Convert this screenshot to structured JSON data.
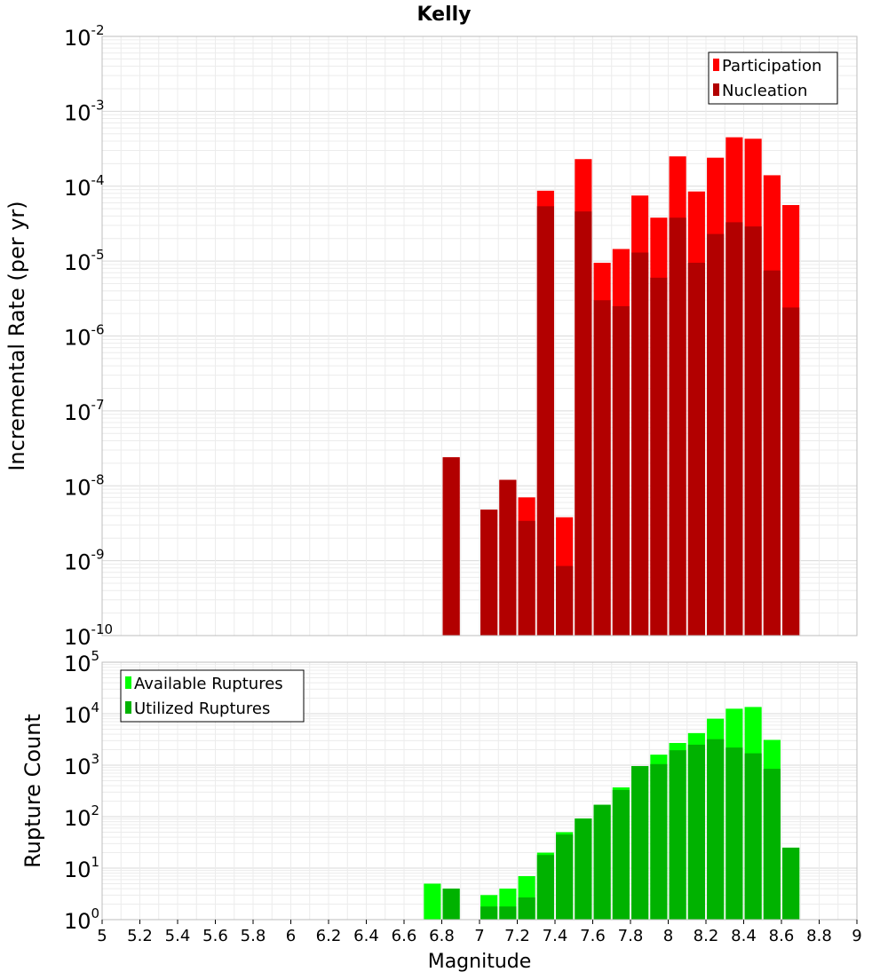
{
  "chart_data": [
    {
      "type": "bar",
      "title": "Kelly",
      "ylabel": "Incremental Rate (per yr)",
      "yscale": "log",
      "ylim": [
        1e-10,
        0.01
      ],
      "ytick_exponents": [
        -10,
        -9,
        -8,
        -7,
        -6,
        -5,
        -4,
        -3,
        -2
      ],
      "grid": true,
      "legend_position": "top-right",
      "bins": [
        5.05,
        5.15,
        5.25,
        5.35,
        5.45,
        5.55,
        5.65,
        5.75,
        5.85,
        5.95,
        6.05,
        6.15,
        6.25,
        6.35,
        6.45,
        6.55,
        6.65,
        6.75,
        6.85,
        6.95,
        7.05,
        7.15,
        7.25,
        7.35,
        7.45,
        7.55,
        7.65,
        7.75,
        7.85,
        7.95,
        8.05,
        8.15,
        8.25,
        8.35,
        8.45,
        8.55,
        8.65,
        8.75,
        8.85,
        8.95
      ],
      "series": [
        {
          "name": "Participation",
          "color": "#ff0000",
          "values": [
            0,
            0,
            0,
            0,
            0,
            0,
            0,
            0,
            0,
            0,
            0,
            0,
            0,
            0,
            0,
            0,
            0,
            0,
            2.4e-08,
            0,
            4.8e-09,
            1.2e-08,
            7e-09,
            8.7e-05,
            3.8e-09,
            0.00023,
            9.5e-06,
            1.45e-05,
            7.5e-05,
            3.8e-05,
            0.00025,
            8.5e-05,
            0.00024,
            0.00045,
            0.00043,
            0.00014,
            5.6e-05,
            0,
            0,
            0
          ]
        },
        {
          "name": "Nucleation",
          "color": "#b20000",
          "values": [
            0,
            0,
            0,
            0,
            0,
            0,
            0,
            0,
            0,
            0,
            0,
            0,
            0,
            0,
            0,
            0,
            0,
            0,
            2.4e-08,
            0,
            4.8e-09,
            1.2e-08,
            3.4e-09,
            5.4e-05,
            8.5e-10,
            4.6e-05,
            3e-06,
            2.5e-06,
            1.3e-05,
            6e-06,
            3.8e-05,
            9.5e-06,
            2.3e-05,
            3.3e-05,
            2.9e-05,
            7.5e-06,
            2.4e-06,
            0,
            0,
            0
          ]
        }
      ]
    },
    {
      "type": "bar",
      "xlabel": "Magnitude",
      "ylabel": "Rupture Count",
      "yscale": "log",
      "ylim": [
        1,
        100000.0
      ],
      "xlim": [
        5,
        9
      ],
      "ytick_exponents": [
        0,
        1,
        2,
        3,
        4,
        5
      ],
      "xticks": [
        "5",
        "5.2",
        "5.4",
        "5.6",
        "5.8",
        "6",
        "6.2",
        "6.4",
        "6.6",
        "6.8",
        "7",
        "7.2",
        "7.4",
        "7.6",
        "7.8",
        "8",
        "8.2",
        "8.4",
        "8.6",
        "8.8",
        "9"
      ],
      "grid": true,
      "legend_position": "top-left",
      "bins": [
        5.05,
        5.15,
        5.25,
        5.35,
        5.45,
        5.55,
        5.65,
        5.75,
        5.85,
        5.95,
        6.05,
        6.15,
        6.25,
        6.35,
        6.45,
        6.55,
        6.65,
        6.75,
        6.85,
        6.95,
        7.05,
        7.15,
        7.25,
        7.35,
        7.45,
        7.55,
        7.65,
        7.75,
        7.85,
        7.95,
        8.05,
        8.15,
        8.25,
        8.35,
        8.45,
        8.55,
        8.65,
        8.75,
        8.85,
        8.95
      ],
      "series": [
        {
          "name": "Available Ruptures",
          "color": "#00ff00",
          "values": [
            0,
            0,
            0,
            0,
            0,
            0,
            0,
            0,
            0,
            0,
            0,
            0,
            0,
            0,
            0,
            0,
            0,
            5,
            4,
            0,
            3,
            4,
            7,
            20,
            50,
            92,
            170,
            370,
            960,
            1600,
            2700,
            4200,
            8000,
            12500,
            13500,
            3100,
            25,
            0,
            0,
            0
          ]
        },
        {
          "name": "Utilized Ruptures",
          "color": "#00b200",
          "values": [
            0,
            0,
            0,
            0,
            0,
            0,
            0,
            0,
            0,
            0,
            0,
            0,
            0,
            0,
            0,
            0,
            0,
            0,
            4,
            0,
            1.8,
            1.8,
            2.7,
            18,
            45,
            92,
            170,
            330,
            960,
            1050,
            1950,
            2500,
            3200,
            2200,
            1700,
            850,
            25,
            0,
            0,
            0
          ]
        }
      ]
    }
  ]
}
